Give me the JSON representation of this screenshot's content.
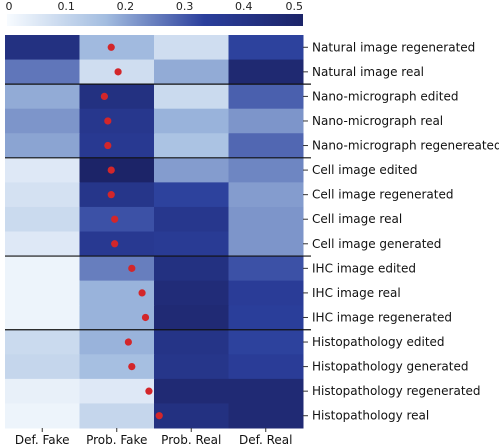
{
  "chart_data": {
    "type": "heatmap",
    "colorbar": {
      "min": 0,
      "max": 0.5,
      "ticks": [
        "0",
        "0.1",
        "0.2",
        "0.3",
        "0.4",
        "0.5"
      ],
      "colors": [
        "#f7fbff",
        "#a3bde0",
        "#2b3f9c",
        "#1c2468"
      ]
    },
    "columns": [
      "Def. Fake",
      "Prob. Fake",
      "Prob. Real",
      "Def. Real"
    ],
    "rows": [
      "Natural image regenerated",
      "Natural image real",
      "Nano-micrograph edited",
      "Nano-micrograph real",
      "Nano-micrograph regenereated",
      "Cell image edited",
      "Cell image regenerated",
      "Cell image real",
      "Cell image generated",
      "IHC image edited",
      "IHC image real",
      "IHC image regenerated",
      "Histopathology edited",
      "Histopathology generated",
      "Histopathology regenerated",
      "Histopathology real"
    ],
    "values": [
      [
        0.42,
        0.17,
        0.08,
        0.33
      ],
      [
        0.26,
        0.08,
        0.19,
        0.47
      ],
      [
        0.19,
        0.42,
        0.09,
        0.29
      ],
      [
        0.22,
        0.38,
        0.18,
        0.22
      ],
      [
        0.2,
        0.37,
        0.15,
        0.28
      ],
      [
        0.05,
        0.5,
        0.21,
        0.24
      ],
      [
        0.07,
        0.39,
        0.33,
        0.21
      ],
      [
        0.09,
        0.31,
        0.38,
        0.22
      ],
      [
        0.05,
        0.37,
        0.36,
        0.22
      ],
      [
        0.02,
        0.25,
        0.42,
        0.31
      ],
      [
        0.02,
        0.18,
        0.45,
        0.35
      ],
      [
        0.02,
        0.18,
        0.46,
        0.34
      ],
      [
        0.09,
        0.18,
        0.4,
        0.33
      ],
      [
        0.1,
        0.16,
        0.39,
        0.35
      ],
      [
        0.03,
        0.05,
        0.46,
        0.46
      ],
      [
        0.02,
        0.1,
        0.42,
        0.46
      ]
    ],
    "dots": [
      0.31,
      0.33,
      0.29,
      0.3,
      0.3,
      0.31,
      0.31,
      0.32,
      0.32,
      0.37,
      0.4,
      0.41,
      0.36,
      0.37,
      0.42,
      0.45
    ],
    "dot_color": "#d3262a",
    "group_separators_after_row": [
      1,
      4,
      8,
      11
    ]
  }
}
